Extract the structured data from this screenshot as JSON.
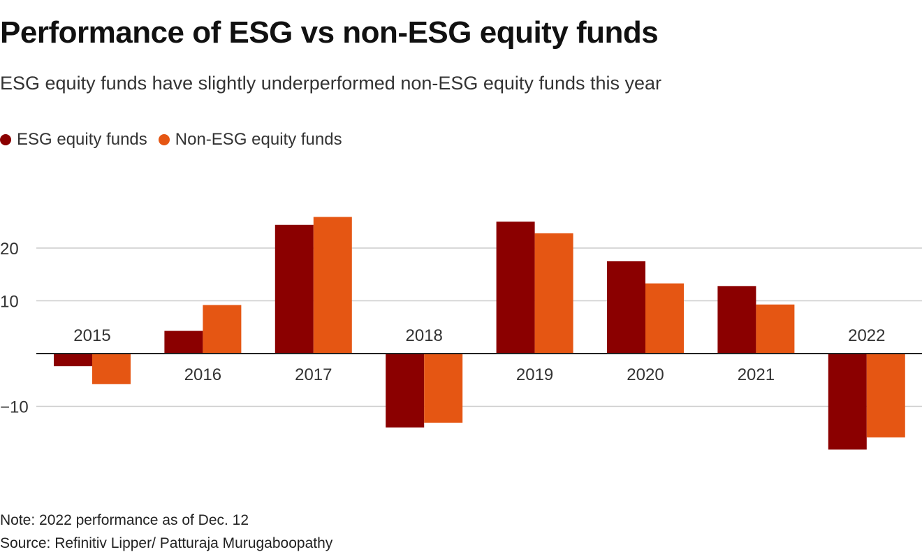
{
  "header": {
    "title": "Performance of ESG vs non-ESG equity funds",
    "subtitle": "ESG equity funds have slightly underperformed non-ESG equity funds this year"
  },
  "footer": {
    "note": "Note: 2022 performance as of Dec. 12",
    "source": "Source: Refinitiv Lipper/ Patturaja Murugaboopathy"
  },
  "chart_data": {
    "type": "bar",
    "categories": [
      "2015",
      "2016",
      "2017",
      "2018",
      "2019",
      "2020",
      "2021",
      "2022"
    ],
    "series": [
      {
        "name": "ESG equity funds",
        "color": "#8b0000",
        "values": [
          -2.4,
          4.3,
          24.4,
          -14.0,
          25.0,
          17.5,
          12.8,
          -18.2
        ]
      },
      {
        "name": "Non-ESG equity funds",
        "color": "#e55613",
        "values": [
          -5.8,
          9.2,
          25.9,
          -13.1,
          22.8,
          13.3,
          9.3,
          -15.9
        ]
      }
    ],
    "y_ticks": [
      -10,
      10,
      20
    ],
    "y_tick_labels": [
      "−10",
      "10",
      "20"
    ],
    "ylim": [
      -20,
      30
    ],
    "xlabel": "",
    "ylabel": "",
    "grid": true,
    "legend": "top-left"
  }
}
